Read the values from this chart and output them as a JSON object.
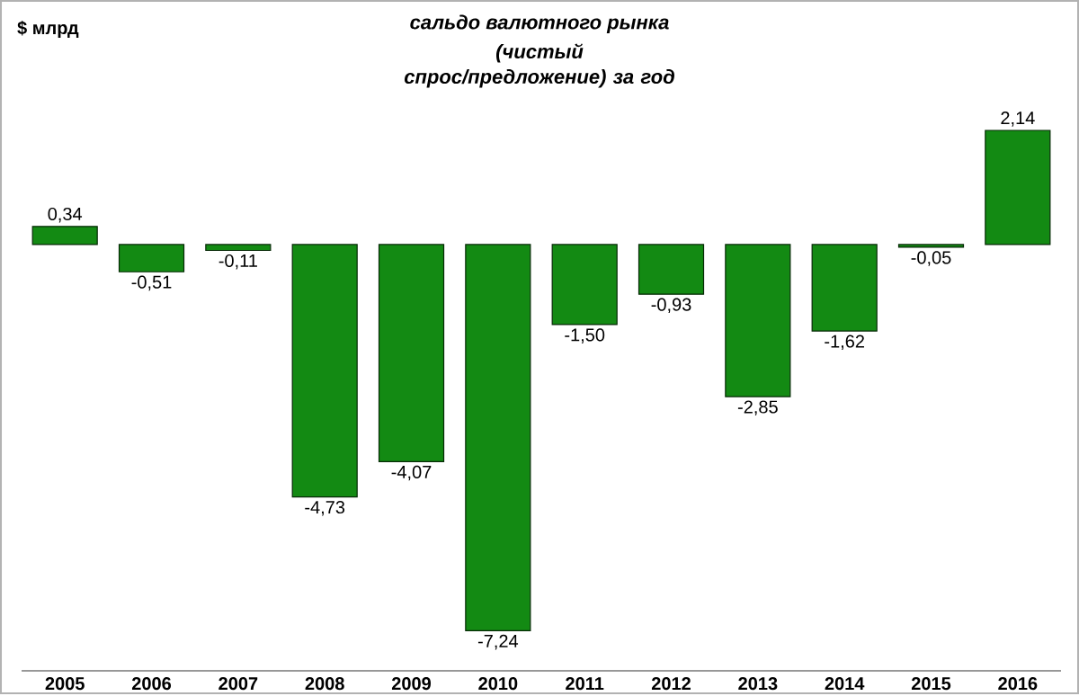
{
  "chart_data": {
    "type": "bar",
    "title": "сальдо валютного рынка",
    "subtitle": "(чистый спрос/предложение) за год",
    "annotations": [
      "$ млрд"
    ],
    "categories": [
      "2005",
      "2006",
      "2007",
      "2008",
      "2009",
      "2010",
      "2011",
      "2012",
      "2013",
      "2014",
      "2015",
      "2016"
    ],
    "values": [
      0.34,
      -0.51,
      -0.11,
      -4.73,
      -4.07,
      -7.24,
      -1.5,
      -0.93,
      -2.85,
      -1.62,
      -0.05,
      2.14
    ],
    "value_labels": [
      "0,34",
      "-0,51",
      "-0,11",
      "-4,73",
      "-4,07",
      "-7,24",
      "-1,50",
      "-0,93",
      "-2,85",
      "-1,62",
      "-0,05",
      "2,14"
    ],
    "color": "#138a13"
  }
}
